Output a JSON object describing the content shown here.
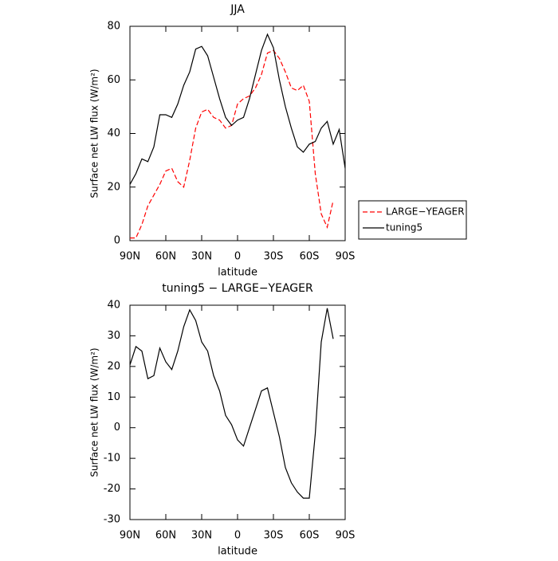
{
  "chart_data": [
    {
      "type": "line",
      "title": "JJA",
      "xlabel": "latitude",
      "ylabel": "Surface net LW flux (W/m²)",
      "x": [
        90,
        85,
        80,
        75,
        70,
        65,
        60,
        55,
        50,
        45,
        40,
        35,
        30,
        25,
        20,
        15,
        10,
        5,
        0,
        -5,
        -10,
        -15,
        -20,
        -25,
        -30,
        -35,
        -40,
        -45,
        -50,
        -55,
        -60,
        -65,
        -70,
        -75,
        -80,
        -85,
        -90
      ],
      "series": [
        {
          "name": "LARGE−YEAGER",
          "color": "#ff0000",
          "dashed": true,
          "values": [
            1,
            1,
            6,
            13,
            17,
            21,
            26,
            27,
            22,
            20,
            30,
            42,
            48,
            49,
            46,
            45,
            42,
            43,
            51,
            53,
            54,
            57,
            62,
            70,
            71,
            68,
            63,
            57,
            56,
            58,
            52,
            25,
            10,
            5,
            15,
            null,
            null
          ]
        },
        {
          "name": "tuning5",
          "color": "#000000",
          "dashed": false,
          "values": [
            21,
            25,
            30.5,
            29.5,
            35,
            47,
            47,
            46,
            51,
            58,
            63,
            71.5,
            72.5,
            69,
            61,
            53,
            46,
            43,
            45,
            46,
            53,
            62,
            71,
            77,
            72,
            60,
            50,
            42,
            35,
            33,
            36,
            37,
            42,
            44.5,
            36,
            41.5,
            27
          ]
        }
      ],
      "xlim": [
        90,
        -90
      ],
      "xticks": [
        {
          "value": 90,
          "label": "90N"
        },
        {
          "value": 60,
          "label": "60N"
        },
        {
          "value": 30,
          "label": "30N"
        },
        0,
        {
          "value": -30,
          "label": "30S"
        },
        {
          "value": -60,
          "label": "60S"
        },
        {
          "value": -90,
          "label": "90S"
        }
      ],
      "ylim": [
        0,
        80
      ],
      "yticks": [
        0,
        20,
        40,
        60,
        80
      ],
      "legend": "right"
    },
    {
      "type": "line",
      "title": "tuning5 − LARGE−YEAGER",
      "xlabel": "latitude",
      "ylabel": "Surface net LW flux (W/m²)",
      "x": [
        90,
        85,
        80,
        75,
        70,
        65,
        60,
        55,
        50,
        45,
        40,
        35,
        30,
        25,
        20,
        15,
        10,
        5,
        0,
        -5,
        -10,
        -15,
        -20,
        -25,
        -30,
        -35,
        -40,
        -45,
        -50,
        -55,
        -60,
        -65,
        -70,
        -75,
        -80,
        -85,
        -90
      ],
      "series": [
        {
          "color": "#000000",
          "dashed": false,
          "values": [
            20.5,
            26.5,
            25,
            16,
            17,
            26,
            21.5,
            19,
            25,
            33,
            38.5,
            35,
            28,
            25,
            17,
            12,
            4,
            1,
            -4,
            -6,
            0,
            6,
            12,
            13,
            5,
            -3,
            -13,
            -18,
            -21,
            -23,
            -23,
            -2,
            28,
            39,
            29,
            null,
            null
          ]
        }
      ],
      "xlim": [
        90,
        -90
      ],
      "xticks": [
        {
          "value": 90,
          "label": "90N"
        },
        {
          "value": 60,
          "label": "60N"
        },
        {
          "value": 30,
          "label": "30N"
        },
        0,
        {
          "value": -30,
          "label": "30S"
        },
        {
          "value": -60,
          "label": "60S"
        },
        {
          "value": -90,
          "label": "90S"
        }
      ],
      "ylim": [
        -30,
        40
      ],
      "yticks": [
        -30,
        -20,
        -10,
        0,
        10,
        20,
        30,
        40
      ]
    }
  ]
}
